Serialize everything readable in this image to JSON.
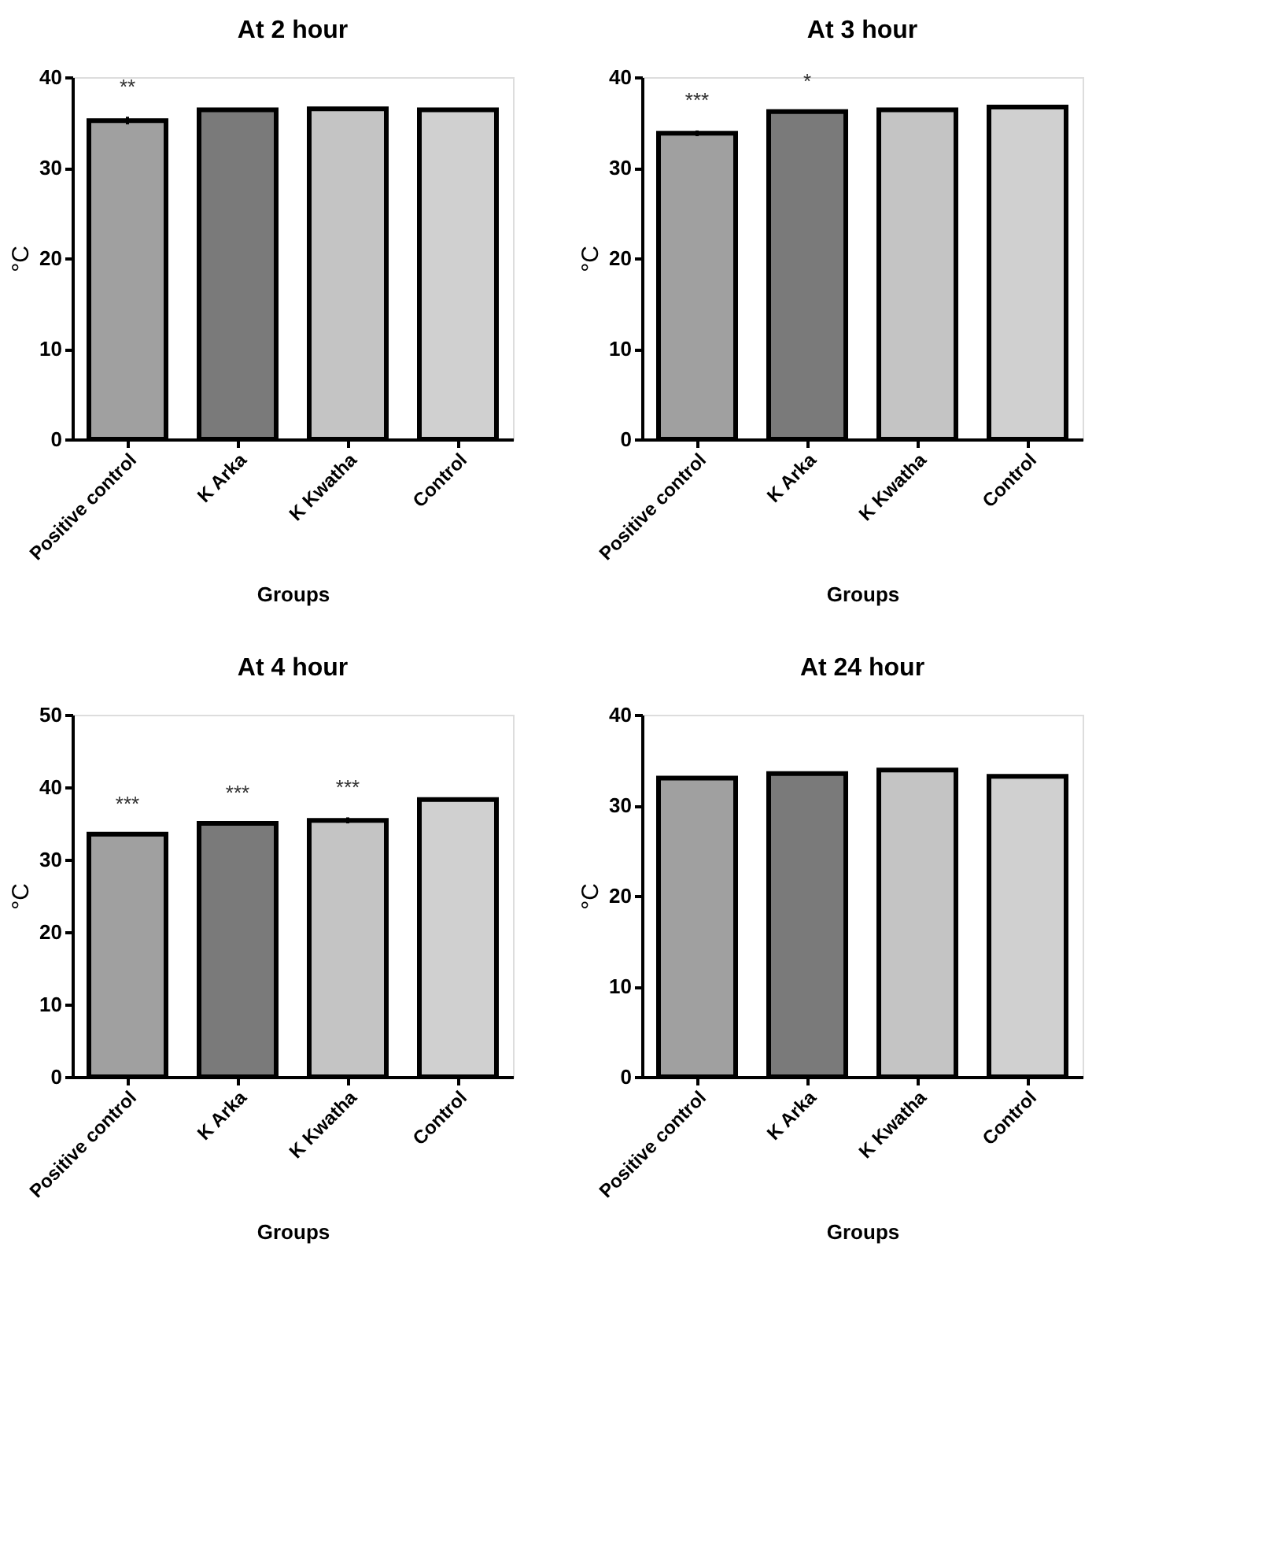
{
  "chart_data": [
    {
      "type": "bar",
      "title": "At 2 hour",
      "xlabel": "Groups",
      "ylabel": "°C",
      "categories": [
        "Positive control",
        "K Arka",
        "K Kwatha",
        "Control"
      ],
      "values": [
        35.2,
        36.4,
        36.5,
        36.4
      ],
      "errors": [
        0.4,
        null,
        null,
        null
      ],
      "colors": [
        "#a0a0a0",
        "#7a7a7a",
        "#c4c4c4",
        "#d0d0d0"
      ],
      "ylim": [
        0,
        40
      ],
      "yticks": [
        0,
        10,
        20,
        30,
        40
      ],
      "grid": false,
      "annotations": [
        "**"
      ]
    },
    {
      "type": "bar",
      "title": "At 3 hour",
      "xlabel": "Groups",
      "ylabel": "°C",
      "categories": [
        "Positive control",
        "K Arka",
        "K Kwatha",
        "Control"
      ],
      "values": [
        33.8,
        36.2,
        36.4,
        36.7
      ],
      "errors": [
        0.3,
        null,
        null,
        null
      ],
      "colors": [
        "#a0a0a0",
        "#7a7a7a",
        "#c4c4c4",
        "#d0d0d0"
      ],
      "ylim": [
        0,
        40
      ],
      "yticks": [
        0,
        10,
        20,
        30,
        40
      ],
      "grid": false,
      "annotations": [
        "***",
        "*"
      ]
    },
    {
      "type": "bar",
      "title": "At 4 hour",
      "xlabel": "Groups",
      "ylabel": "°C",
      "categories": [
        "Positive control",
        "K Arka",
        "K Kwatha",
        "Control"
      ],
      "values": [
        33.5,
        35.0,
        35.4,
        38.3
      ],
      "errors": [
        null,
        null,
        0.4,
        null
      ],
      "colors": [
        "#a0a0a0",
        "#7a7a7a",
        "#c4c4c4",
        "#d0d0d0"
      ],
      "ylim": [
        0,
        50
      ],
      "yticks": [
        0,
        10,
        20,
        30,
        40,
        50
      ],
      "grid": false,
      "annotations": [
        "***",
        "***",
        "***"
      ]
    },
    {
      "type": "bar",
      "title": "At 24 hour",
      "xlabel": "Groups",
      "ylabel": "°C",
      "categories": [
        "Positive control",
        "K Arka",
        "K Kwatha",
        "Control"
      ],
      "values": [
        33.0,
        33.5,
        33.9,
        33.2
      ],
      "errors": [
        null,
        null,
        null,
        null
      ],
      "colors": [
        "#a0a0a0",
        "#7a7a7a",
        "#c4c4c4",
        "#d0d0d0"
      ],
      "ylim": [
        0,
        40
      ],
      "yticks": [
        0,
        10,
        20,
        30,
        40
      ],
      "grid": false
    }
  ]
}
